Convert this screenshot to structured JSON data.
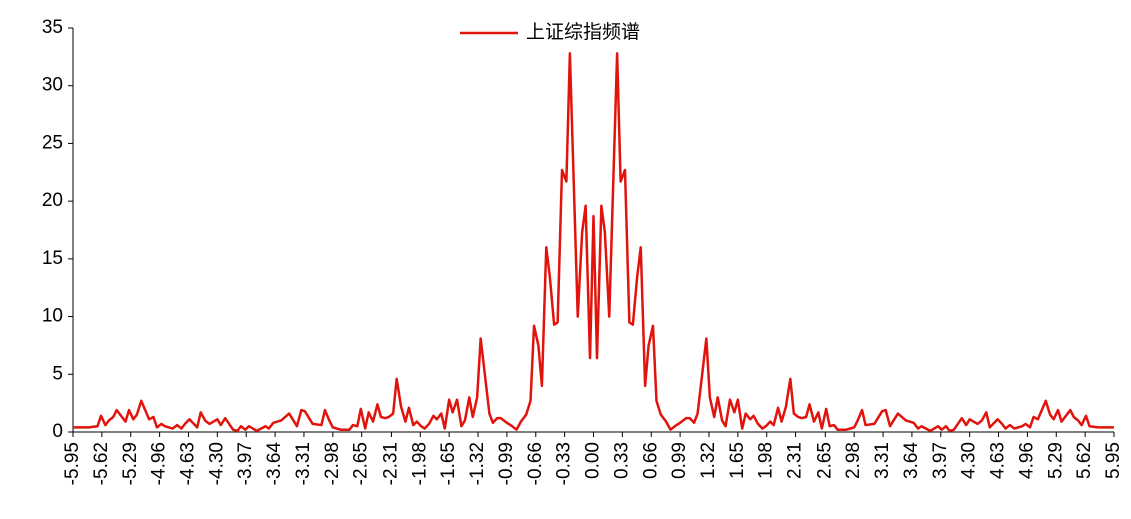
{
  "chart_data": {
    "type": "line",
    "series": [
      {
        "name": "上证综指频谱",
        "color": "#e0140c",
        "x": [
          -5.95,
          -5.77,
          -5.67,
          -5.63,
          -5.58,
          -5.54,
          -5.49,
          -5.45,
          -5.35,
          -5.31,
          -5.26,
          -5.22,
          -5.17,
          -5.08,
          -5.03,
          -4.99,
          -4.94,
          -4.9,
          -4.81,
          -4.76,
          -4.71,
          -4.67,
          -4.62,
          -4.53,
          -4.49,
          -4.44,
          -4.39,
          -4.3,
          -4.26,
          -4.21,
          -4.12,
          -4.07,
          -4.03,
          -3.98,
          -3.94,
          -3.85,
          -3.75,
          -3.71,
          -3.66,
          -3.57,
          -3.48,
          -3.43,
          -3.39,
          -3.34,
          -3.3,
          -3.21,
          -3.11,
          -3.07,
          -3.02,
          -2.98,
          -2.89,
          -2.79,
          -2.75,
          -2.7,
          -2.66,
          -2.61,
          -2.57,
          -2.52,
          -2.47,
          -2.43,
          -2.38,
          -2.34,
          -2.29,
          -2.25,
          -2.2,
          -2.15,
          -2.11,
          -2.06,
          -2.02,
          -1.97,
          -1.93,
          -1.88,
          -1.83,
          -1.79,
          -1.74,
          -1.7,
          -1.65,
          -1.61,
          -1.56,
          -1.51,
          -1.47,
          -1.42,
          -1.38,
          -1.33,
          -1.29,
          -1.19,
          -1.15,
          -1.1,
          -1.06,
          -0.99,
          -0.93,
          -0.88,
          -0.83,
          -0.77,
          -0.72,
          -0.68,
          -0.63,
          -0.59,
          -0.54,
          -0.5,
          -0.45,
          -0.41,
          -0.36,
          -0.31,
          -0.27,
          -0.18,
          -0.13,
          -0.09,
          -0.04,
          0,
          0.04,
          0.09,
          0.13,
          0.18,
          0.27,
          0.31,
          0.36,
          0.41,
          0.45,
          0.5,
          0.54,
          0.59,
          0.63,
          0.68,
          0.72,
          0.77,
          0.83,
          0.88,
          0.93,
          0.99,
          1.06,
          1.1,
          1.15,
          1.19,
          1.29,
          1.33,
          1.38,
          1.42,
          1.47,
          1.51,
          1.56,
          1.61,
          1.65,
          1.7,
          1.74,
          1.79,
          1.83,
          1.88,
          1.93,
          1.97,
          2.02,
          2.06,
          2.11,
          2.15,
          2.2,
          2.25,
          2.29,
          2.34,
          2.38,
          2.43,
          2.47,
          2.52,
          2.57,
          2.61,
          2.66,
          2.7,
          2.75,
          2.79,
          2.89,
          2.98,
          3.02,
          3.07,
          3.11,
          3.21,
          3.3,
          3.34,
          3.39,
          3.43,
          3.48,
          3.57,
          3.66,
          3.71,
          3.75,
          3.85,
          3.94,
          3.98,
          4.03,
          4.07,
          4.12,
          4.21,
          4.26,
          4.3,
          4.39,
          4.44,
          4.49,
          4.53,
          4.62,
          4.67,
          4.71,
          4.76,
          4.81,
          4.9,
          4.94,
          4.99,
          5.03,
          5.08,
          5.17,
          5.22,
          5.26,
          5.31,
          5.35,
          5.45,
          5.49,
          5.54,
          5.58,
          5.63,
          5.67,
          5.77,
          5.95
        ],
        "values": [
          0.4,
          0.4,
          0.5,
          1.4,
          0.6,
          1.0,
          1.3,
          1.9,
          0.9,
          1.9,
          1.1,
          1.5,
          2.7,
          1.1,
          1.3,
          0.4,
          0.7,
          0.5,
          0.3,
          0.6,
          0.3,
          0.7,
          1.1,
          0.4,
          1.7,
          1.0,
          0.7,
          1.1,
          0.6,
          1.2,
          0.2,
          0.1,
          0.5,
          0.2,
          0.5,
          0.1,
          0.5,
          0.3,
          0.8,
          1.0,
          1.6,
          1.0,
          0.5,
          1.9,
          1.8,
          0.7,
          0.6,
          1.9,
          1.0,
          0.4,
          0.2,
          0.2,
          0.6,
          0.5,
          2.0,
          0.3,
          1.7,
          0.9,
          2.4,
          1.3,
          1.2,
          1.3,
          1.6,
          4.6,
          2.2,
          0.9,
          2.1,
          0.6,
          0.9,
          0.5,
          0.3,
          0.7,
          1.4,
          1.1,
          1.6,
          0.3,
          2.8,
          1.7,
          2.8,
          0.5,
          1,
          3,
          1.3,
          3,
          8.1,
          1.6,
          0.8,
          1.2,
          1.2,
          0.8,
          0.5,
          0.2,
          0.9,
          1.5,
          2.7,
          9.2,
          7.5,
          4,
          16,
          13.5,
          9.3,
          9.5,
          22.7,
          21.7,
          32.8,
          10,
          17.3,
          19.6,
          6.4,
          18.7,
          6.4,
          19.6,
          17.3,
          10,
          32.8,
          21.7,
          22.7,
          9.5,
          9.3,
          13.5,
          16,
          4,
          7.5,
          9.2,
          2.7,
          1.5,
          0.9,
          0.2,
          0.5,
          0.8,
          1.2,
          1.2,
          0.8,
          1.6,
          8.1,
          3,
          1.3,
          3,
          1,
          0.5,
          2.8,
          1.7,
          2.8,
          0.3,
          1.6,
          1.1,
          1.4,
          0.7,
          0.3,
          0.5,
          0.9,
          0.6,
          2.1,
          0.9,
          2.2,
          4.6,
          1.6,
          1.3,
          1.2,
          1.3,
          2.4,
          0.9,
          1.7,
          0.3,
          2.0,
          0.5,
          0.6,
          0.2,
          0.2,
          0.4,
          1.0,
          1.9,
          0.6,
          0.7,
          1.8,
          1.9,
          0.5,
          1.0,
          1.6,
          1.0,
          0.8,
          0.3,
          0.5,
          0.1,
          0.5,
          0.2,
          0.5,
          0.1,
          0.2,
          1.2,
          0.6,
          1.1,
          0.7,
          1.0,
          1.7,
          0.4,
          1.1,
          0.7,
          0.3,
          0.6,
          0.3,
          0.5,
          0.7,
          0.4,
          1.3,
          1.1,
          2.7,
          1.5,
          1.1,
          1.9,
          0.9,
          1.9,
          1.3,
          1.0,
          0.6,
          1.4,
          0.5,
          0.4,
          0.4
        ]
      }
    ],
    "xlim": [
      -5.95,
      5.95
    ],
    "xticks": [
      -5.95,
      -5.62,
      -5.29,
      -4.96,
      -4.63,
      {
        "value": -4.3,
        "label": "-4.30"
      },
      -3.97,
      -3.64,
      -3.31,
      -2.98,
      -2.65,
      -2.31,
      -1.98,
      -1.65,
      -1.32,
      -0.99,
      -0.66,
      -0.33,
      {
        "value": 0,
        "label": "0.00"
      },
      0.33,
      0.66,
      0.99,
      1.32,
      1.65,
      1.98,
      2.31,
      2.65,
      2.98,
      3.31,
      3.64,
      3.97,
      {
        "value": 4.3,
        "label": "4.30"
      },
      4.63,
      4.96,
      5.29,
      5.62,
      5.95
    ],
    "ylim": [
      0,
      35
    ],
    "yticks": [
      0,
      5,
      10,
      15,
      20,
      25,
      30,
      35
    ],
    "grid": false,
    "legend": "top"
  }
}
